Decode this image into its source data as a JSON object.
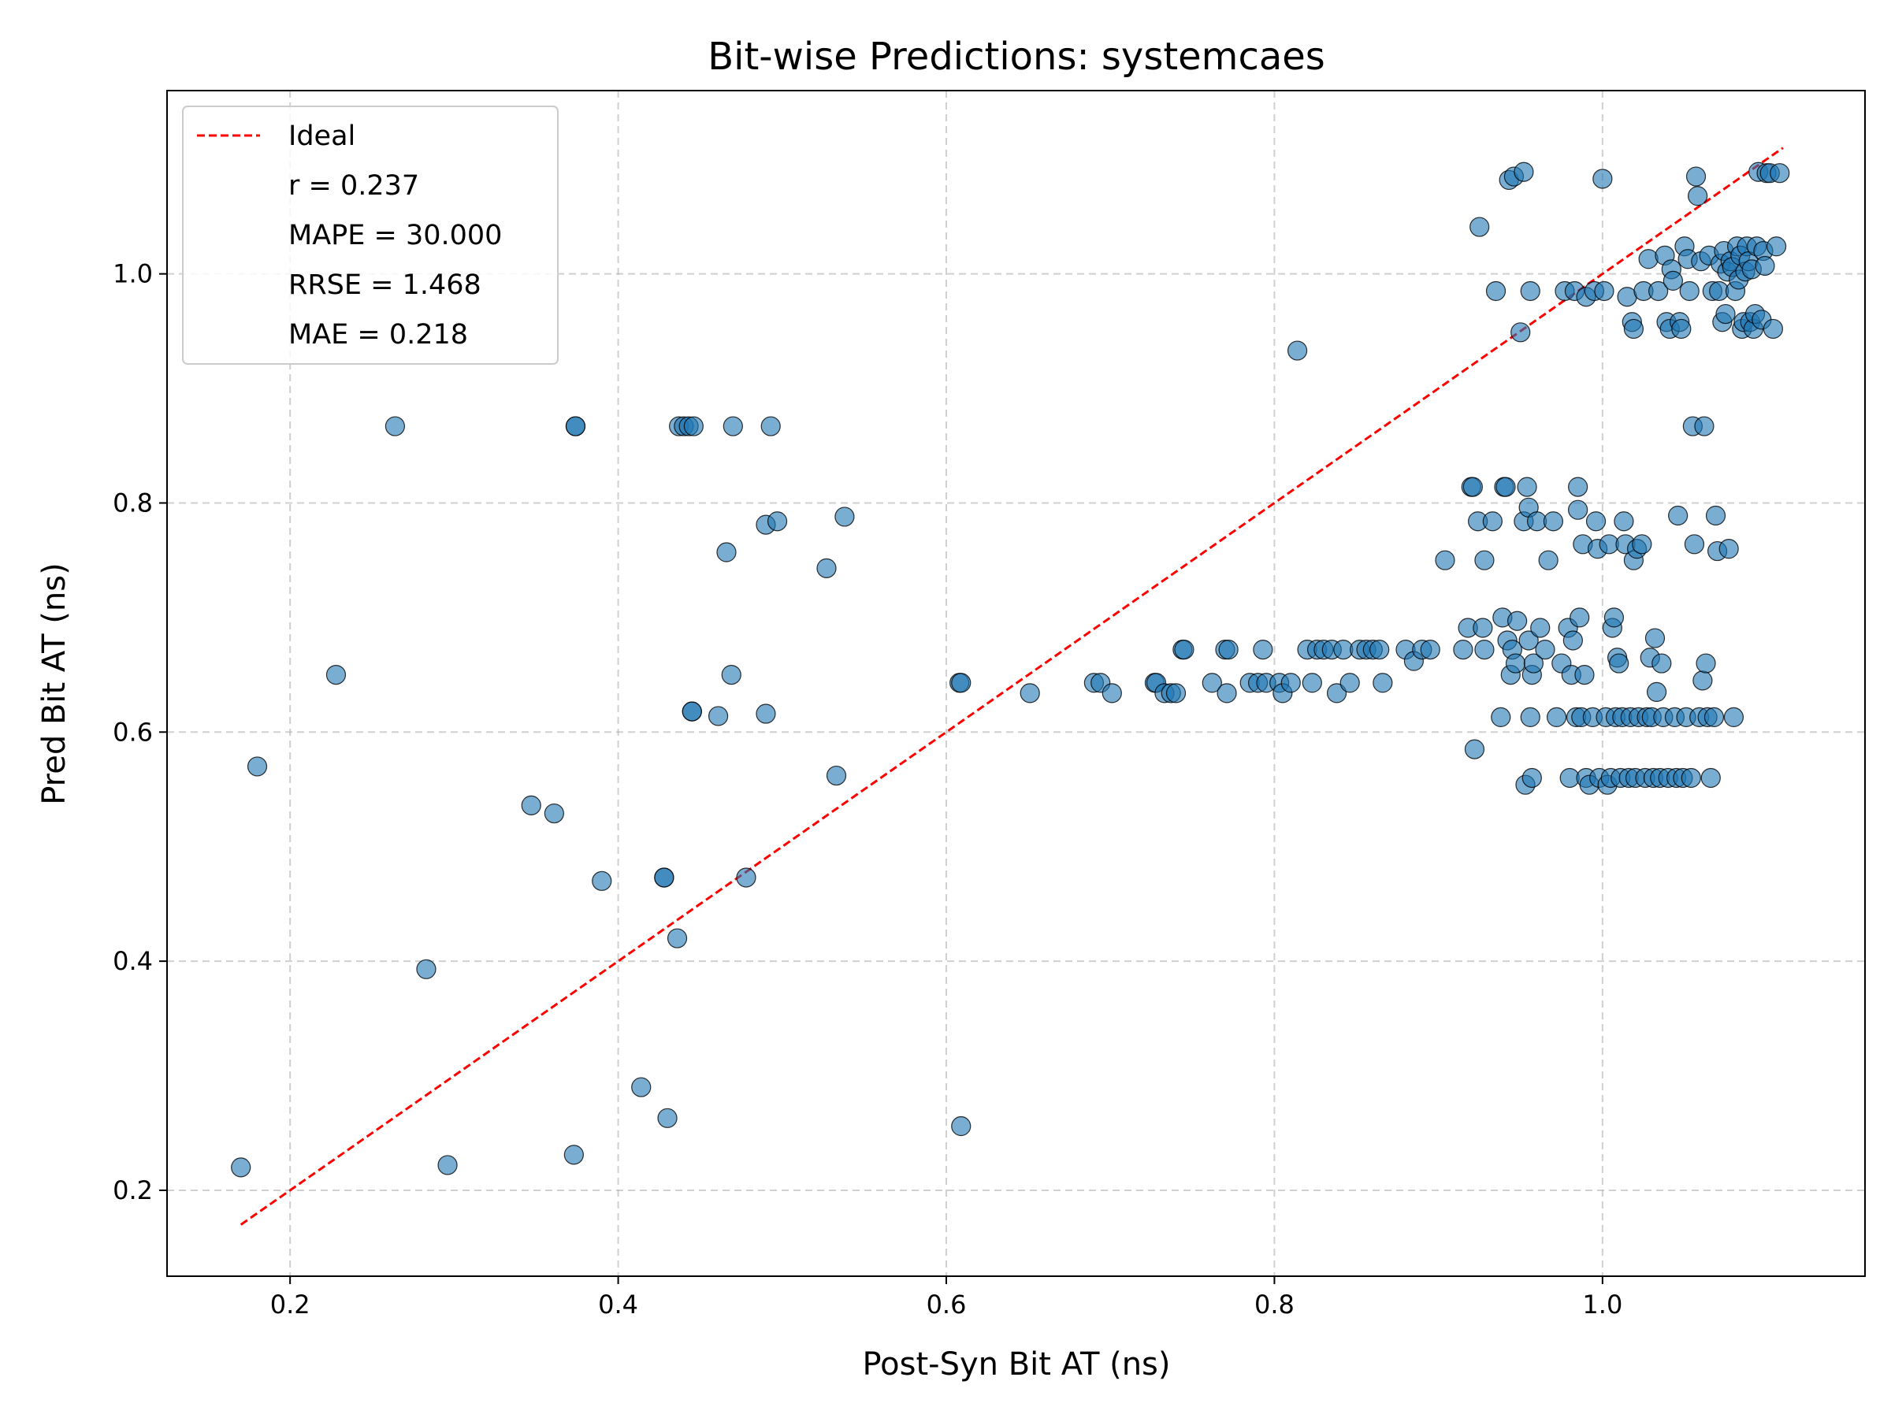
{
  "chart_data": {
    "type": "scatter",
    "title": "Bit-wise Predictions: systemcaes",
    "xlabel": "Post-Syn Bit AT (ns)",
    "ylabel": "Pred Bit AT (ns)",
    "xlim": [
      0.125,
      1.16
    ],
    "ylim": [
      0.125,
      1.16
    ],
    "xticks": [
      "0.2",
      "0.4",
      "0.6",
      "0.8",
      "1.0"
    ],
    "yticks": [
      "0.2",
      "0.4",
      "0.6",
      "0.8",
      "1.0"
    ],
    "grid": true,
    "legend_position": "top-left",
    "colors": {
      "points": "#1f77b4",
      "ideal_line": "#ff0000"
    },
    "ideal_line": {
      "name": "Ideal",
      "x": [
        0.17,
        1.11
      ],
      "y": [
        0.17,
        1.11
      ]
    },
    "stats": [
      "r = 0.237",
      "MAPE = 30.000",
      "RRSE = 1.468",
      "MAE = 0.218"
    ],
    "points": [
      [
        0.17,
        0.22
      ],
      [
        0.18,
        0.57
      ],
      [
        0.228,
        0.65
      ],
      [
        0.264,
        0.867
      ],
      [
        0.283,
        0.393
      ],
      [
        0.296,
        0.222
      ],
      [
        0.347,
        0.536
      ],
      [
        0.361,
        0.529
      ],
      [
        0.373,
        0.231
      ],
      [
        0.374,
        0.867
      ],
      [
        0.374,
        0.867
      ],
      [
        0.39,
        0.47
      ],
      [
        0.414,
        0.29
      ],
      [
        0.428,
        0.473
      ],
      [
        0.428,
        0.473
      ],
      [
        0.43,
        0.263
      ],
      [
        0.436,
        0.42
      ],
      [
        0.437,
        0.867
      ],
      [
        0.44,
        0.867
      ],
      [
        0.443,
        0.867
      ],
      [
        0.446,
        0.867
      ],
      [
        0.445,
        0.618
      ],
      [
        0.445,
        0.618
      ],
      [
        0.461,
        0.614
      ],
      [
        0.466,
        0.757
      ],
      [
        0.469,
        0.65
      ],
      [
        0.47,
        0.867
      ],
      [
        0.478,
        0.473
      ],
      [
        0.49,
        0.616
      ],
      [
        0.49,
        0.781
      ],
      [
        0.493,
        0.867
      ],
      [
        0.497,
        0.784
      ],
      [
        0.527,
        0.743
      ],
      [
        0.533,
        0.562
      ],
      [
        0.538,
        0.788
      ],
      [
        0.608,
        0.643
      ],
      [
        0.609,
        0.643
      ],
      [
        0.609,
        0.256
      ],
      [
        0.651,
        0.634
      ],
      [
        0.69,
        0.643
      ],
      [
        0.694,
        0.643
      ],
      [
        0.701,
        0.634
      ],
      [
        0.727,
        0.643
      ],
      [
        0.728,
        0.643
      ],
      [
        0.733,
        0.634
      ],
      [
        0.737,
        0.634
      ],
      [
        0.74,
        0.634
      ],
      [
        0.744,
        0.672
      ],
      [
        0.745,
        0.672
      ],
      [
        0.762,
        0.643
      ],
      [
        0.77,
        0.672
      ],
      [
        0.771,
        0.634
      ],
      [
        0.772,
        0.672
      ],
      [
        0.785,
        0.643
      ],
      [
        0.79,
        0.643
      ],
      [
        0.793,
        0.672
      ],
      [
        0.795,
        0.643
      ],
      [
        0.803,
        0.643
      ],
      [
        0.805,
        0.634
      ],
      [
        0.81,
        0.643
      ],
      [
        0.814,
        0.933
      ],
      [
        0.82,
        0.672
      ],
      [
        0.823,
        0.643
      ],
      [
        0.826,
        0.672
      ],
      [
        0.83,
        0.672
      ],
      [
        0.835,
        0.672
      ],
      [
        0.838,
        0.634
      ],
      [
        0.842,
        0.672
      ],
      [
        0.846,
        0.643
      ],
      [
        0.852,
        0.672
      ],
      [
        0.856,
        0.672
      ],
      [
        0.86,
        0.672
      ],
      [
        0.864,
        0.672
      ],
      [
        0.866,
        0.643
      ],
      [
        0.88,
        0.672
      ],
      [
        0.885,
        0.662
      ],
      [
        0.89,
        0.672
      ],
      [
        0.895,
        0.672
      ],
      [
        0.904,
        0.75
      ],
      [
        0.915,
        0.672
      ],
      [
        0.918,
        0.691
      ],
      [
        0.92,
        0.814
      ],
      [
        0.921,
        0.814
      ],
      [
        0.922,
        0.585
      ],
      [
        0.924,
        0.784
      ],
      [
        0.925,
        1.041
      ],
      [
        0.927,
        0.691
      ],
      [
        0.928,
        0.75
      ],
      [
        0.928,
        0.672
      ],
      [
        0.933,
        0.784
      ],
      [
        0.935,
        0.985
      ],
      [
        0.938,
        0.613
      ],
      [
        0.939,
        0.7
      ],
      [
        0.94,
        0.814
      ],
      [
        0.941,
        0.814
      ],
      [
        0.942,
        0.68
      ],
      [
        0.943,
        1.082
      ],
      [
        0.944,
        0.65
      ],
      [
        0.945,
        0.672
      ],
      [
        0.946,
        1.085
      ],
      [
        0.947,
        0.66
      ],
      [
        0.948,
        0.697
      ],
      [
        0.95,
        0.949
      ],
      [
        0.952,
        0.784
      ],
      [
        0.952,
        1.089
      ],
      [
        0.953,
        0.554
      ],
      [
        0.954,
        0.814
      ],
      [
        0.955,
        0.68
      ],
      [
        0.955,
        0.796
      ],
      [
        0.956,
        0.613
      ],
      [
        0.956,
        0.985
      ],
      [
        0.957,
        0.65
      ],
      [
        0.957,
        0.56
      ],
      [
        0.958,
        0.66
      ],
      [
        0.96,
        0.784
      ],
      [
        0.962,
        0.691
      ],
      [
        0.965,
        0.672
      ],
      [
        0.967,
        0.75
      ],
      [
        0.97,
        0.784
      ],
      [
        0.972,
        0.613
      ],
      [
        0.975,
        0.66
      ],
      [
        0.977,
        0.985
      ],
      [
        0.979,
        0.691
      ],
      [
        0.98,
        0.56
      ],
      [
        0.981,
        0.65
      ],
      [
        0.982,
        0.68
      ],
      [
        0.983,
        0.985
      ],
      [
        0.984,
        0.613
      ],
      [
        0.985,
        0.814
      ],
      [
        0.985,
        0.794
      ],
      [
        0.986,
        0.7
      ],
      [
        0.987,
        0.613
      ],
      [
        0.988,
        0.764
      ],
      [
        0.989,
        0.65
      ],
      [
        0.99,
        0.56
      ],
      [
        0.99,
        0.98
      ],
      [
        0.992,
        0.554
      ],
      [
        0.994,
        0.613
      ],
      [
        0.995,
        0.985
      ],
      [
        0.996,
        0.784
      ],
      [
        0.997,
        0.76
      ],
      [
        0.998,
        0.56
      ],
      [
        1.0,
        1.083
      ],
      [
        1.001,
        0.985
      ],
      [
        1.002,
        0.613
      ],
      [
        1.003,
        0.554
      ],
      [
        1.004,
        0.764
      ],
      [
        1.005,
        0.56
      ],
      [
        1.006,
        0.691
      ],
      [
        1.007,
        0.7
      ],
      [
        1.008,
        0.613
      ],
      [
        1.009,
        0.665
      ],
      [
        1.01,
        0.66
      ],
      [
        1.011,
        0.56
      ],
      [
        1.012,
        0.613
      ],
      [
        1.013,
        0.784
      ],
      [
        1.014,
        0.764
      ],
      [
        1.015,
        0.98
      ],
      [
        1.016,
        0.56
      ],
      [
        1.017,
        0.613
      ],
      [
        1.018,
        0.958
      ],
      [
        1.019,
        0.952
      ],
      [
        1.019,
        0.75
      ],
      [
        1.02,
        0.56
      ],
      [
        1.021,
        0.76
      ],
      [
        1.022,
        0.613
      ],
      [
        1.024,
        0.764
      ],
      [
        1.025,
        0.985
      ],
      [
        1.026,
        0.56
      ],
      [
        1.027,
        0.613
      ],
      [
        1.028,
        1.013
      ],
      [
        1.029,
        0.665
      ],
      [
        1.03,
        0.613
      ],
      [
        1.031,
        0.56
      ],
      [
        1.032,
        0.682
      ],
      [
        1.033,
        0.635
      ],
      [
        1.034,
        0.985
      ],
      [
        1.035,
        0.56
      ],
      [
        1.036,
        0.66
      ],
      [
        1.037,
        0.613
      ],
      [
        1.038,
        1.016
      ],
      [
        1.039,
        0.958
      ],
      [
        1.04,
        0.56
      ],
      [
        1.041,
        0.952
      ],
      [
        1.042,
        1.004
      ],
      [
        1.043,
        0.994
      ],
      [
        1.044,
        0.613
      ],
      [
        1.045,
        0.56
      ],
      [
        1.046,
        0.789
      ],
      [
        1.047,
        0.958
      ],
      [
        1.048,
        0.952
      ],
      [
        1.049,
        0.56
      ],
      [
        1.05,
        1.024
      ],
      [
        1.051,
        0.613
      ],
      [
        1.052,
        1.013
      ],
      [
        1.053,
        0.985
      ],
      [
        1.054,
        0.56
      ],
      [
        1.055,
        0.867
      ],
      [
        1.056,
        0.764
      ],
      [
        1.057,
        1.085
      ],
      [
        1.058,
        1.068
      ],
      [
        1.059,
        0.613
      ],
      [
        1.06,
        1.011
      ],
      [
        1.061,
        0.645
      ],
      [
        1.062,
        0.867
      ],
      [
        1.063,
        0.66
      ],
      [
        1.064,
        0.613
      ],
      [
        1.065,
        1.016
      ],
      [
        1.066,
        0.56
      ],
      [
        1.067,
        0.985
      ],
      [
        1.068,
        0.613
      ],
      [
        1.069,
        0.789
      ],
      [
        1.07,
        0.758
      ],
      [
        1.071,
        0.985
      ],
      [
        1.072,
        1.009
      ],
      [
        1.073,
        0.958
      ],
      [
        1.074,
        1.02
      ],
      [
        1.075,
        0.965
      ],
      [
        1.076,
        1.002
      ],
      [
        1.077,
        0.76
      ],
      [
        1.078,
        1.011
      ],
      [
        1.079,
        1.006
      ],
      [
        1.08,
        0.613
      ],
      [
        1.081,
        0.985
      ],
      [
        1.082,
        1.024
      ],
      [
        1.083,
        0.995
      ],
      [
        1.084,
        1.016
      ],
      [
        1.085,
        0.952
      ],
      [
        1.086,
        0.958
      ],
      [
        1.087,
        1.002
      ],
      [
        1.088,
        1.024
      ],
      [
        1.089,
        1.011
      ],
      [
        1.09,
        0.958
      ],
      [
        1.091,
        1.004
      ],
      [
        1.092,
        0.952
      ],
      [
        1.093,
        0.965
      ],
      [
        1.094,
        1.024
      ],
      [
        1.095,
        1.089
      ],
      [
        1.097,
        0.96
      ],
      [
        1.098,
        1.02
      ],
      [
        1.099,
        1.007
      ],
      [
        1.1,
        1.088
      ],
      [
        1.102,
        1.088
      ],
      [
        1.104,
        0.952
      ],
      [
        1.106,
        1.024
      ],
      [
        1.108,
        1.088
      ]
    ]
  }
}
